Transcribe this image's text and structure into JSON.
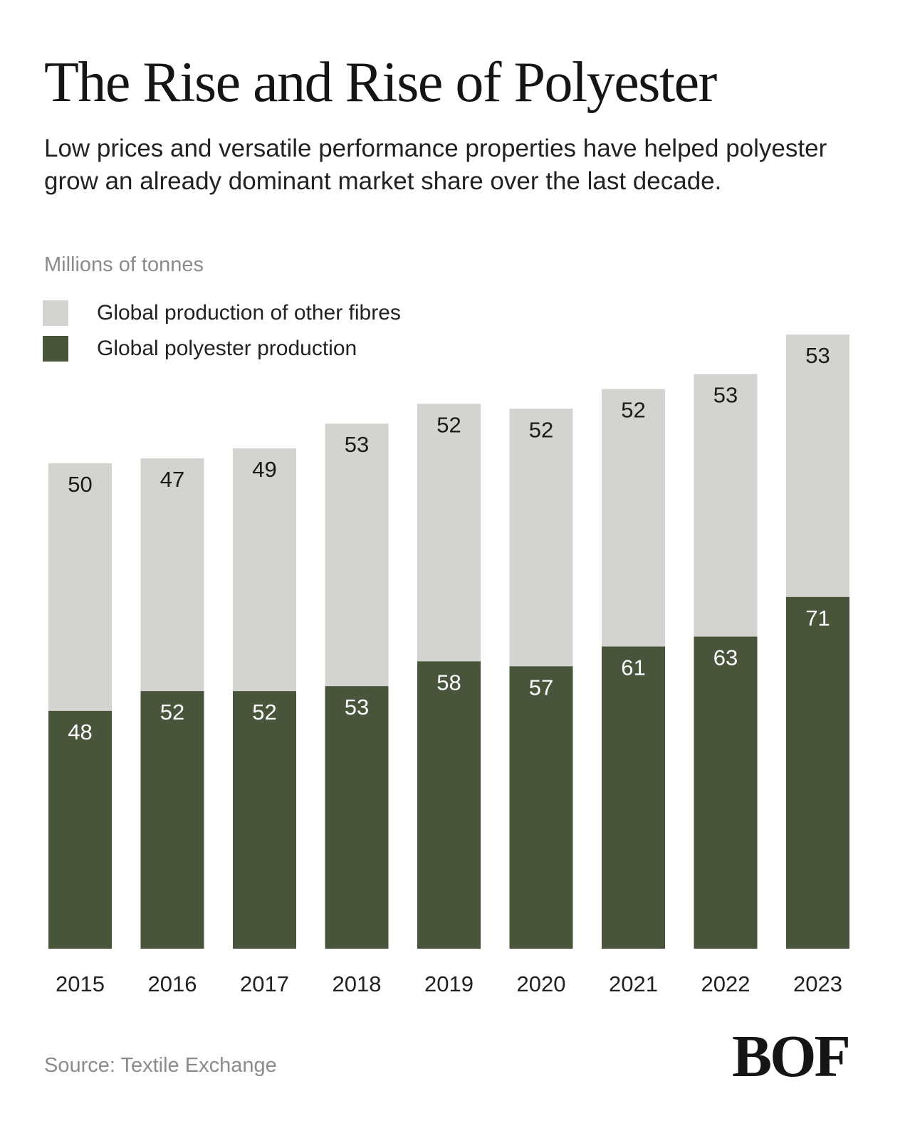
{
  "header": {
    "title": "The Rise and Rise of Polyester",
    "subtitle": "Low prices and versatile performance properties have helped polyester grow an already dominant market share over the last decade."
  },
  "colors": {
    "other_fibres": "#d3d4cf",
    "polyester": "#48553b",
    "label_dark": "#1a1a1a",
    "label_light": "#ffffff",
    "muted_text": "#8b8b8b"
  },
  "chart_data": {
    "type": "bar",
    "stacked": true,
    "title": "The Rise and Rise of Polyester",
    "subtitle": "Low prices and versatile performance properties have helped polyester grow an already dominant market share over the last decade.",
    "unit_label": "Millions of tonnes",
    "categories": [
      "2015",
      "2016",
      "2017",
      "2018",
      "2019",
      "2020",
      "2021",
      "2022",
      "2023"
    ],
    "series": [
      {
        "name": "Global polyester production",
        "color": "#48553b",
        "values": [
          48,
          52,
          52,
          53,
          58,
          57,
          61,
          63,
          71
        ]
      },
      {
        "name": "Global production of other fibres",
        "color": "#d3d4cf",
        "values": [
          50,
          47,
          49,
          53,
          52,
          52,
          52,
          53,
          53
        ]
      }
    ],
    "legend": {
      "placement": "top-left",
      "order": [
        "Global production of other fibres",
        "Global polyester production"
      ]
    },
    "ylim": [
      0,
      124
    ],
    "grid": false,
    "data_labels": true,
    "source": "Source: Textile Exchange"
  },
  "footer": {
    "source": "Source: Textile Exchange",
    "logo_text": "BOF",
    "logo_icon": "bof-logo-icon"
  }
}
